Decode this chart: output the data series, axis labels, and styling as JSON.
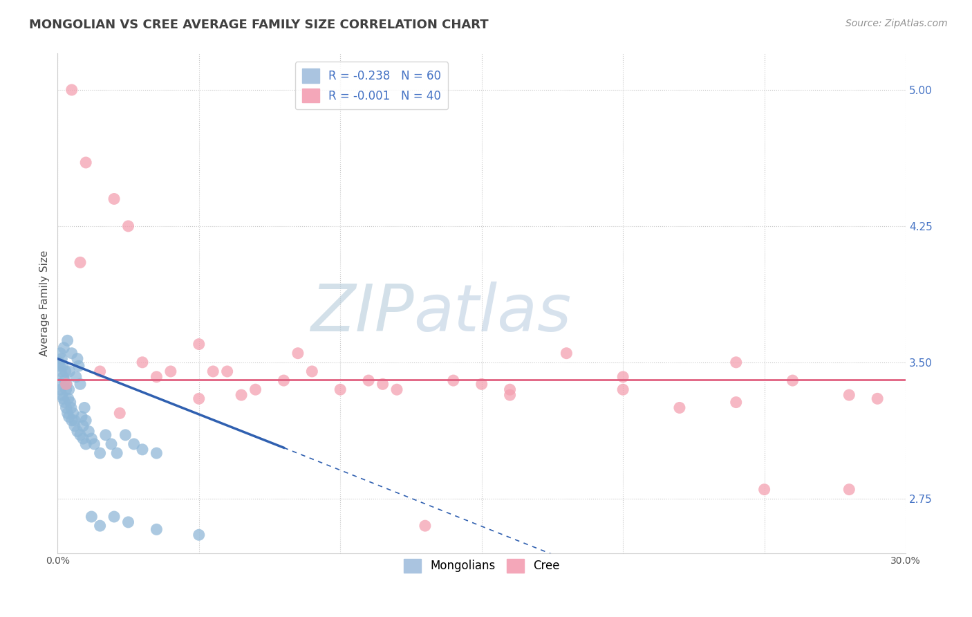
{
  "title": "MONGOLIAN VS CREE AVERAGE FAMILY SIZE CORRELATION CHART",
  "source": "Source: ZipAtlas.com",
  "ylabel": "Average Family Size",
  "xlim": [
    0.0,
    30.0
  ],
  "ylim": [
    2.45,
    5.2
  ],
  "yticks": [
    2.75,
    3.5,
    4.25,
    5.0
  ],
  "xticks": [
    0.0,
    5.0,
    10.0,
    15.0,
    20.0,
    25.0,
    30.0
  ],
  "xtick_labels": [
    "0.0%",
    "",
    "",
    "",
    "",
    "",
    "30.0%"
  ],
  "legend_entries": [
    {
      "label": "R = -0.238   N = 60",
      "color": "#aac4e0"
    },
    {
      "label": "R = -0.001   N = 40",
      "color": "#f4a7b9"
    }
  ],
  "mongolian_color": "#90b8d8",
  "cree_color": "#f4a0b0",
  "mongolian_line_color": "#3060b0",
  "cree_line_color": "#e06080",
  "background_color": "#ffffff",
  "grid_color": "#c8c8c8",
  "title_color": "#404040",
  "axis_label_color": "#4472c4",
  "watermark_zip": "ZIP",
  "watermark_atlas": "atlas",
  "mongolian_reg_x0": 0.0,
  "mongolian_reg_y0": 3.52,
  "mongolian_reg_x_solid_end": 8.0,
  "mongolian_reg_y_solid_end": 3.03,
  "mongolian_reg_x_dashed_end": 30.0,
  "mongolian_reg_y_dashed_end": 1.67,
  "cree_reg_y": 3.405,
  "mongolian_x": [
    0.05,
    0.08,
    0.1,
    0.12,
    0.15,
    0.18,
    0.2,
    0.22,
    0.25,
    0.28,
    0.3,
    0.32,
    0.35,
    0.38,
    0.4,
    0.42,
    0.45,
    0.48,
    0.5,
    0.55,
    0.6,
    0.65,
    0.7,
    0.75,
    0.8,
    0.85,
    0.9,
    0.95,
    1.0,
    1.1,
    1.2,
    1.3,
    1.5,
    1.7,
    1.9,
    2.1,
    2.4,
    2.7,
    3.0,
    3.5,
    0.05,
    0.1,
    0.15,
    0.2,
    0.25,
    0.3,
    0.35,
    0.4,
    0.5,
    0.6,
    0.7,
    0.8,
    0.9,
    1.0,
    1.2,
    1.5,
    2.0,
    2.5,
    3.5,
    5.0
  ],
  "mongolian_y": [
    3.5,
    3.48,
    3.55,
    3.45,
    3.52,
    3.48,
    3.42,
    3.58,
    3.4,
    3.45,
    3.35,
    3.38,
    3.62,
    3.3,
    3.35,
    3.45,
    3.28,
    3.25,
    3.55,
    3.22,
    3.18,
    3.42,
    3.52,
    3.48,
    3.38,
    3.2,
    3.15,
    3.25,
    3.18,
    3.12,
    3.08,
    3.05,
    3.0,
    3.1,
    3.05,
    3.0,
    3.1,
    3.05,
    3.02,
    3.0,
    3.38,
    3.35,
    3.32,
    3.3,
    3.28,
    3.25,
    3.22,
    3.2,
    3.18,
    3.15,
    3.12,
    3.1,
    3.08,
    3.05,
    2.65,
    2.6,
    2.65,
    2.62,
    2.58,
    2.55
  ],
  "cree_x": [
    0.5,
    1.0,
    2.0,
    2.5,
    3.0,
    4.0,
    5.0,
    6.0,
    7.0,
    8.0,
    9.0,
    10.0,
    11.0,
    12.0,
    13.0,
    14.0,
    16.0,
    18.0,
    20.0,
    22.0,
    24.0,
    25.0,
    26.0,
    28.0,
    29.0,
    1.5,
    3.5,
    5.5,
    8.5,
    0.3,
    2.2,
    6.5,
    11.5,
    16.0,
    20.0,
    24.0,
    28.0,
    15.0,
    5.0,
    0.8
  ],
  "cree_y": [
    5.0,
    4.6,
    4.4,
    4.25,
    3.5,
    3.45,
    3.6,
    3.45,
    3.35,
    3.4,
    3.45,
    3.35,
    3.4,
    3.35,
    2.6,
    3.4,
    3.35,
    3.55,
    3.35,
    3.25,
    3.5,
    2.8,
    3.4,
    2.8,
    3.3,
    3.45,
    3.42,
    3.45,
    3.55,
    3.38,
    3.22,
    3.32,
    3.38,
    3.32,
    3.42,
    3.28,
    3.32,
    3.38,
    3.3,
    4.05
  ]
}
